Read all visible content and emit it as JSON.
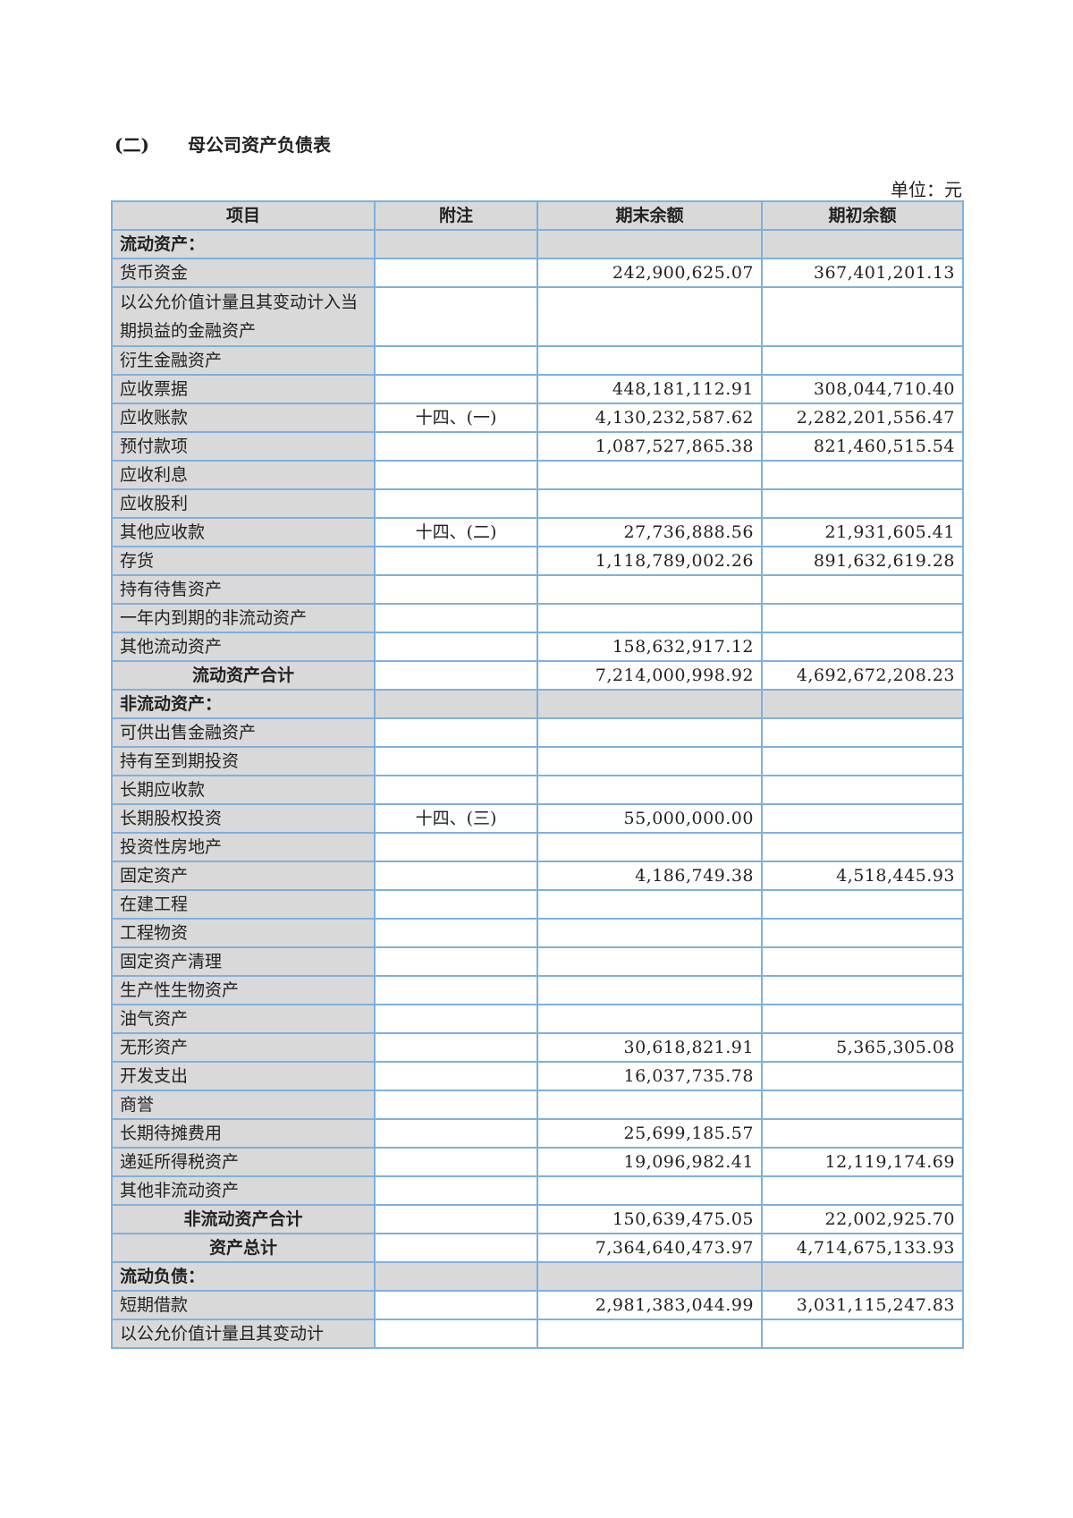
{
  "title": {
    "number": "(二)",
    "text": "母公司资产负债表"
  },
  "unit": "单位：元",
  "columns": [
    "项目",
    "附注",
    "期末余额",
    "期初余额"
  ],
  "rows": [
    {
      "item": "流动资产：",
      "note": "",
      "end": "",
      "begin": "",
      "type": "section"
    },
    {
      "item": "货币资金",
      "note": "",
      "end": "242,900,625.07",
      "begin": "367,401,201.13"
    },
    {
      "item": "以公允价值计量且其变动计入当期损益的金融资产",
      "note": "",
      "end": "",
      "begin": "",
      "type": "wrap"
    },
    {
      "item": "衍生金融资产",
      "note": "",
      "end": "",
      "begin": ""
    },
    {
      "item": "应收票据",
      "note": "",
      "end": "448,181,112.91",
      "begin": "308,044,710.40"
    },
    {
      "item": "应收账款",
      "note": "十四、(一)",
      "end": "4,130,232,587.62",
      "begin": "2,282,201,556.47"
    },
    {
      "item": "预付款项",
      "note": "",
      "end": "1,087,527,865.38",
      "begin": "821,460,515.54"
    },
    {
      "item": "应收利息",
      "note": "",
      "end": "",
      "begin": ""
    },
    {
      "item": "应收股利",
      "note": "",
      "end": "",
      "begin": ""
    },
    {
      "item": "其他应收款",
      "note": "十四、(二)",
      "end": "27,736,888.56",
      "begin": "21,931,605.41"
    },
    {
      "item": "存货",
      "note": "",
      "end": "1,118,789,002.26",
      "begin": "891,632,619.28"
    },
    {
      "item": "持有待售资产",
      "note": "",
      "end": "",
      "begin": ""
    },
    {
      "item": "一年内到期的非流动资产",
      "note": "",
      "end": "",
      "begin": ""
    },
    {
      "item": "其他流动资产",
      "note": "",
      "end": "158,632,917.12",
      "begin": ""
    },
    {
      "item": "流动资产合计",
      "note": "",
      "end": "7,214,000,998.92",
      "begin": "4,692,672,208.23",
      "type": "total"
    },
    {
      "item": "非流动资产：",
      "note": "",
      "end": "",
      "begin": "",
      "type": "section"
    },
    {
      "item": "可供出售金融资产",
      "note": "",
      "end": "",
      "begin": ""
    },
    {
      "item": "持有至到期投资",
      "note": "",
      "end": "",
      "begin": ""
    },
    {
      "item": "长期应收款",
      "note": "",
      "end": "",
      "begin": ""
    },
    {
      "item": "长期股权投资",
      "note": "十四、(三)",
      "end": "55,000,000.00",
      "begin": ""
    },
    {
      "item": "投资性房地产",
      "note": "",
      "end": "",
      "begin": ""
    },
    {
      "item": "固定资产",
      "note": "",
      "end": "4,186,749.38",
      "begin": "4,518,445.93"
    },
    {
      "item": "在建工程",
      "note": "",
      "end": "",
      "begin": ""
    },
    {
      "item": "工程物资",
      "note": "",
      "end": "",
      "begin": ""
    },
    {
      "item": "固定资产清理",
      "note": "",
      "end": "",
      "begin": ""
    },
    {
      "item": "生产性生物资产",
      "note": "",
      "end": "",
      "begin": ""
    },
    {
      "item": "油气资产",
      "note": "",
      "end": "",
      "begin": ""
    },
    {
      "item": "无形资产",
      "note": "",
      "end": "30,618,821.91",
      "begin": "5,365,305.08"
    },
    {
      "item": "开发支出",
      "note": "",
      "end": "16,037,735.78",
      "begin": ""
    },
    {
      "item": "商誉",
      "note": "",
      "end": "",
      "begin": ""
    },
    {
      "item": "长期待摊费用",
      "note": "",
      "end": "25,699,185.57",
      "begin": ""
    },
    {
      "item": "递延所得税资产",
      "note": "",
      "end": "19,096,982.41",
      "begin": "12,119,174.69"
    },
    {
      "item": "其他非流动资产",
      "note": "",
      "end": "",
      "begin": ""
    },
    {
      "item": "非流动资产合计",
      "note": "",
      "end": "150,639,475.05",
      "begin": "22,002,925.70",
      "type": "total"
    },
    {
      "item": "资产总计",
      "note": "",
      "end": "7,364,640,473.97",
      "begin": "4,714,675,133.93",
      "type": "total"
    },
    {
      "item": "流动负债：",
      "note": "",
      "end": "",
      "begin": "",
      "type": "section"
    },
    {
      "item": "短期借款",
      "note": "",
      "end": "2,981,383,044.99",
      "begin": "3,031,115,247.83"
    },
    {
      "item": "以公允价值计量且其变动计",
      "note": "",
      "end": "",
      "begin": ""
    }
  ]
}
